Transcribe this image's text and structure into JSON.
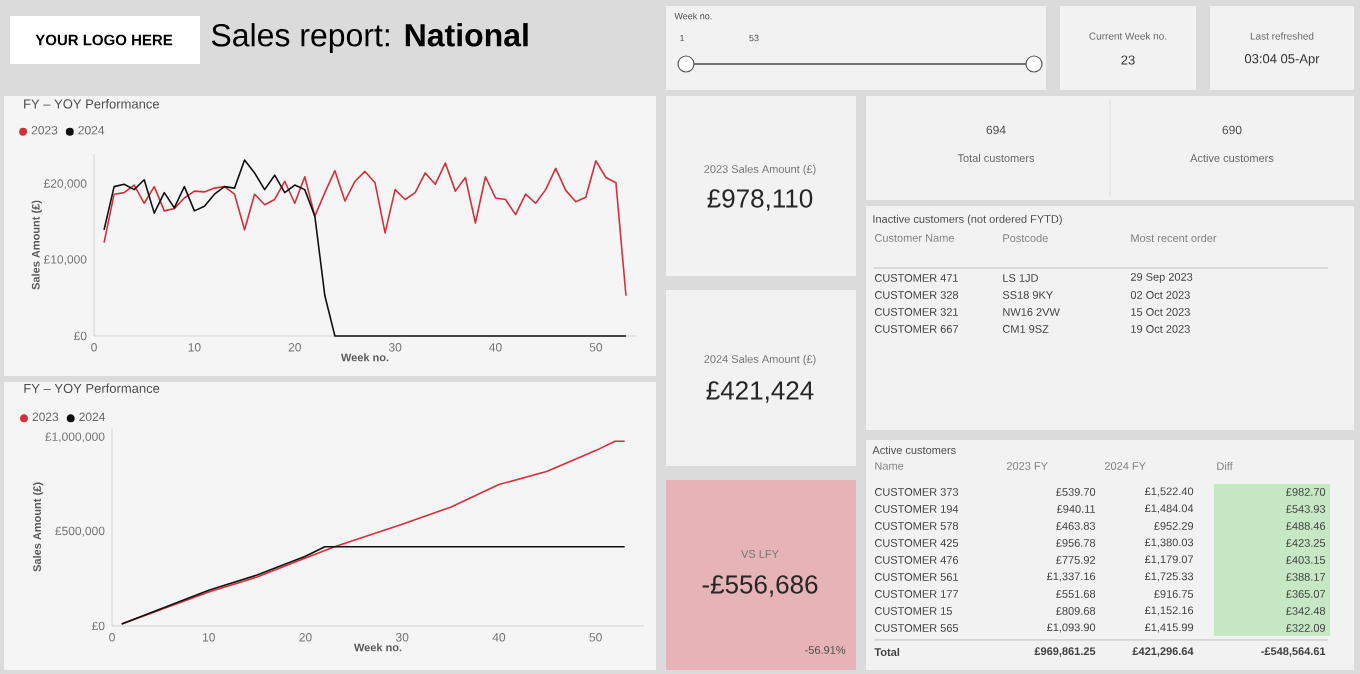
{
  "chart_data": [
    {
      "type": "line",
      "title": "FY – YOY Performance",
      "xlabel": "Week no.",
      "ylabel": "Sales Amount (£)",
      "legend": "top left",
      "x": [
        1,
        2,
        3,
        4,
        5,
        6,
        7,
        8,
        9,
        10,
        11,
        12,
        13,
        14,
        15,
        16,
        17,
        18,
        19,
        20,
        21,
        22,
        23,
        24,
        25,
        26,
        27,
        28,
        29,
        30,
        31,
        32,
        33,
        34,
        35,
        36,
        37,
        38,
        39,
        40,
        41,
        42,
        43,
        44,
        45,
        46,
        47,
        48,
        49,
        50,
        51,
        52,
        53
      ],
      "xlim": [
        0,
        54
      ],
      "ylim": [
        0,
        24000
      ],
      "xticks": [
        0,
        10,
        20,
        30,
        40,
        50
      ],
      "yticks": [
        {
          "value": 0,
          "label": "£0"
        },
        {
          "value": 10000,
          "label": "£10,000"
        },
        {
          "value": 20000,
          "label": "£20,000"
        }
      ],
      "series": [
        {
          "name": "2023",
          "color": "#d62f3c",
          "values": [
            12300,
            18700,
            18900,
            19900,
            17500,
            19700,
            16500,
            16800,
            18200,
            19100,
            19000,
            19500,
            19700,
            18700,
            14000,
            18700,
            17300,
            18000,
            20400,
            17500,
            21000,
            15800,
            18900,
            21800,
            17800,
            20400,
            21700,
            20200,
            13600,
            19300,
            18000,
            18900,
            21500,
            20000,
            22800,
            19100,
            20900,
            14900,
            21000,
            18200,
            18000,
            16000,
            18700,
            17500,
            19300,
            22100,
            19200,
            17700,
            18300,
            23100,
            20900,
            20200,
            5300
          ]
        },
        {
          "name": "2024",
          "color": "#111111",
          "values": [
            14000,
            19700,
            20000,
            19300,
            20600,
            16200,
            18900,
            16900,
            19700,
            16500,
            17100,
            18700,
            19700,
            19500,
            23200,
            21500,
            19300,
            21200,
            18900,
            19900,
            19300,
            15800,
            5300,
            0,
            0,
            0,
            0,
            0,
            0,
            0,
            0,
            0,
            0,
            0,
            0,
            0,
            0,
            0,
            0,
            0,
            0,
            0,
            0,
            0,
            0,
            0,
            0,
            0,
            0,
            0,
            0,
            0,
            0
          ]
        }
      ]
    },
    {
      "type": "line",
      "title": "FY – YOY Performance",
      "xlabel": "Week no.",
      "ylabel": "Sales Amount (£)",
      "legend": "top left",
      "xlim": [
        0,
        55
      ],
      "ylim": [
        0,
        1050000
      ],
      "xticks": [
        0,
        10,
        20,
        30,
        40,
        50
      ],
      "yticks": [
        {
          "value": 0,
          "label": "£0"
        },
        {
          "value": 500000,
          "label": "£500,000"
        },
        {
          "value": 1000000,
          "label": "£1,000,000"
        }
      ],
      "series": [
        {
          "name": "2023",
          "color": "#d62f3c",
          "x": [
            1,
            10,
            15,
            20,
            23,
            30,
            35,
            40,
            45,
            50,
            52,
            53
          ],
          "values": [
            10000,
            180000,
            260000,
            360000,
            420000,
            540000,
            630000,
            750000,
            820000,
            930000,
            980000,
            980000
          ]
        },
        {
          "name": "2024",
          "color": "#111111",
          "x": [
            1,
            10,
            15,
            20,
            22,
            23,
            53
          ],
          "values": [
            10000,
            190000,
            270000,
            370000,
            420000,
            420000,
            420000
          ]
        }
      ]
    },
    {
      "type": "other",
      "title": "Sales report: **National**",
      "annotations": [
        "YOUR LOGO HERE"
      ]
    },
    {
      "type": "other",
      "title": "Week no.",
      "annotations": [
        "1",
        "53"
      ]
    },
    {
      "type": "other",
      "title": "Current Week no.",
      "annotations": [
        "23"
      ]
    },
    {
      "type": "other",
      "title": "Last refreshed",
      "annotations": [
        "03:04 05-Apr"
      ]
    },
    {
      "type": "other",
      "title": "2023 Sales Amount (£)",
      "annotations": [
        "£978,110"
      ]
    },
    {
      "type": "other",
      "title": "2024 Sales Amount (£)",
      "annotations": [
        "£421,424"
      ]
    },
    {
      "type": "other",
      "title": "VS LFY",
      "annotations": [
        "-£556,686",
        "-56.91%"
      ]
    },
    {
      "type": "other",
      "annotations": [
        "694",
        "Total customers",
        "690",
        "Active customers"
      ]
    },
    {
      "type": "other",
      "title": "Inactive customers (not ordered FYTD)",
      "annotations": [
        "Customer Name",
        "Postcode",
        "Most recent order",
        "CUSTOMER 471",
        "LS 1JD",
        "29 Sep 2023",
        "CUSTOMER 328",
        "SS18 9KY",
        "02 Oct 2023",
        "CUSTOMER 321",
        "NW16 2VW",
        "15 Oct 2023",
        "CUSTOMER 667",
        "CM1 9SZ",
        "19 Oct 2023"
      ]
    },
    {
      "type": "other",
      "title": "Active customers",
      "annotations": [
        "Name",
        "2023 FY",
        "2024 FY",
        "Diff",
        "CUSTOMER 373",
        "£539.70",
        "£1,522.40",
        "£982.70",
        "CUSTOMER 194",
        "£940.11",
        "£1,484.04",
        "£543.93",
        "CUSTOMER 578",
        "£463.83",
        "£952.29",
        "£488.46",
        "CUSTOMER 425",
        "£956.78",
        "£1,380.03",
        "£423.25",
        "CUSTOMER 476",
        "£775.92",
        "£1,179.07",
        "£403.15",
        "CUSTOMER 561",
        "£1,337.16",
        "£1,725.33",
        "£388.17",
        "CUSTOMER 177",
        "£551.68",
        "£916.75",
        "£365.07",
        "CUSTOMER 15",
        "£809.68",
        "£1,152.16",
        "£342.48",
        "CUSTOMER 565",
        "£1,093.90",
        "£1,415.99",
        "£322.09",
        "Total",
        "£969,861.25",
        "£421,296.64",
        "-£548,564.61"
      ]
    }
  ]
}
